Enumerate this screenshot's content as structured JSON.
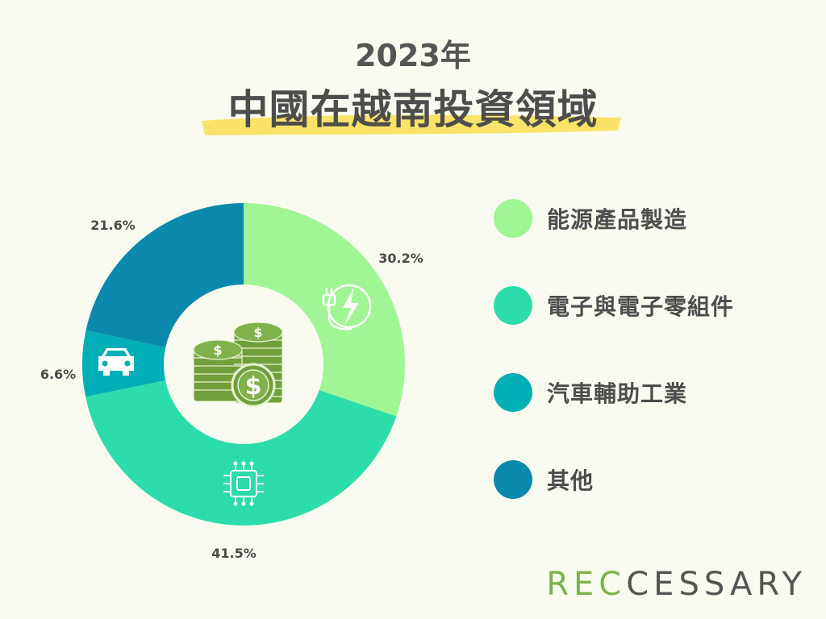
{
  "header": {
    "year": "2023年",
    "title": "中國在越南投資領域"
  },
  "colors": {
    "background": "#fafbf0",
    "highlight": "#fbe36a",
    "energy": "#a0f694",
    "electronics": "#2ddcab",
    "auto": "#00afb5",
    "other": "#0a89ad"
  },
  "chart_data": {
    "type": "pie",
    "title": "中國在越南投資領域",
    "subtitle": "2023年",
    "donut": true,
    "labels": [
      "能源產品製造",
      "電子與電子零組件",
      "汽車輔助工業",
      "其他"
    ],
    "values": [
      30.2,
      41.5,
      6.6,
      21.6
    ],
    "value_labels": [
      "30.2%",
      "41.5%",
      "6.6%",
      "21.6%"
    ],
    "colors": [
      "#a0f694",
      "#2ddcab",
      "#00afb5",
      "#0a89ad"
    ],
    "icons": [
      "plug-lightning-icon",
      "chip-icon",
      "car-icon",
      ""
    ],
    "center_icon": "money-coins-icon",
    "legend_position": "right"
  },
  "legend": [
    {
      "label": "能源產品製造",
      "color": "#a0f694"
    },
    {
      "label": "電子與電子零組件",
      "color": "#2ddcab"
    },
    {
      "label": "汽車輔助工業",
      "color": "#00afb5"
    },
    {
      "label": "其他",
      "color": "#0a89ad"
    }
  ],
  "logo": {
    "green": "REC",
    "dark": "CESSARY"
  }
}
